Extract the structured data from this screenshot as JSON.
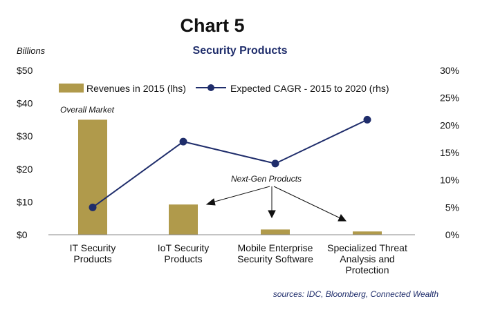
{
  "chart_data": {
    "type": "bar+line",
    "title": "Chart 5",
    "subtitle": "Security Products",
    "unit_label": "Billions",
    "categories": [
      [
        "IT Security",
        "Products"
      ],
      [
        "IoT Security",
        "Products"
      ],
      [
        "Mobile Enterprise",
        "Security Software"
      ],
      [
        "Specialized Threat",
        "Analysis and",
        "Protection"
      ]
    ],
    "series": [
      {
        "name": "Revenues in 2015 (lhs)",
        "type": "bar",
        "axis": "left",
        "color": "#b09a4b",
        "values": [
          35.0,
          9.2,
          1.6,
          1.0
        ]
      },
      {
        "name": "Expected CAGR - 2015 to 2020 (rhs)",
        "type": "line",
        "axis": "right",
        "color": "#1f2d6b",
        "values": [
          5.0,
          17.0,
          13.0,
          21.0
        ]
      }
    ],
    "left_axis": {
      "ticks": [
        "$0",
        "$10",
        "$20",
        "$30",
        "$40",
        "$50"
      ],
      "ylim": [
        0,
        50
      ]
    },
    "right_axis": {
      "ticks": [
        "0%",
        "5%",
        "10%",
        "15%",
        "20%",
        "25%",
        "30%"
      ],
      "ylim": [
        0,
        30
      ]
    },
    "annotations": {
      "overall_market": "Overall Market",
      "next_gen": "Next-Gen Products"
    },
    "legend_position": "top",
    "grid": false
  },
  "source": "sources: IDC, Bloomberg, Connected Wealth"
}
